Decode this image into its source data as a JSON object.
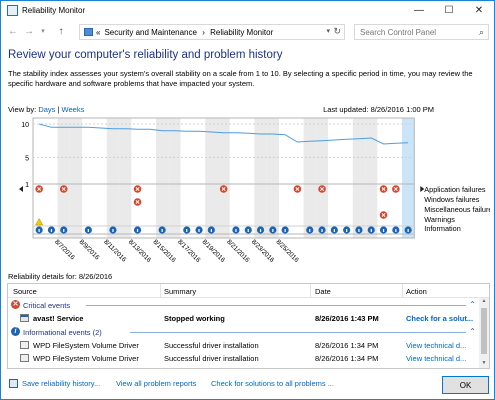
{
  "window": {
    "title": "Reliability Monitor",
    "buttons": {
      "minimize": "—",
      "maximize": "☐",
      "close": "✕"
    }
  },
  "address": {
    "back": "←",
    "forward": "→",
    "up": "↑",
    "chevron": "«",
    "crumb1": "Security and Maintenance",
    "sep": "›",
    "crumb2": "Reliability Monitor",
    "dropdown": "▾",
    "refresh": "↻",
    "search_placeholder": "Search Control Panel",
    "search_icon": "⌕"
  },
  "page": {
    "title": "Review your computer's reliability and problem history",
    "description": "The stability index assesses your system's overall stability on a scale from 1 to 10. By selecting a specific period in time, you may review the specific hardware and software problems that have impacted your system.",
    "view_by_label": "View by:",
    "view_days": "Days",
    "view_sep": "|",
    "view_weeks": "Weeks",
    "last_updated": "Last updated: 8/26/2016 1:00 PM"
  },
  "chart_data": {
    "type": "line",
    "y_ticks": [
      "10",
      "5",
      "1"
    ],
    "ylim": [
      1,
      10
    ],
    "dates": [
      "8/7/2016",
      "8/9/2016",
      "8/11/2016",
      "8/13/2016",
      "8/15/2016",
      "8/17/2016",
      "8/19/2016",
      "8/21/2016",
      "8/23/2016",
      "8/25/2016"
    ],
    "stability_index": [
      10,
      9.5,
      9.5,
      9.5,
      9.5,
      9.4,
      9.3,
      9.3,
      9.2,
      9.2,
      9.0,
      9.0,
      8.9,
      8.9,
      8.8,
      8.7,
      8.7,
      8.6,
      8.5,
      8.5,
      8.4,
      7.3,
      7.4,
      7.5,
      7.6,
      7.7,
      7.8,
      7.9,
      7.0,
      7.1,
      7.2
    ],
    "categories": [
      "Application failures",
      "Windows failures",
      "Miscellaneous failures",
      "Warnings",
      "Information"
    ],
    "application_failures": [
      1,
      0,
      1,
      0,
      0,
      0,
      0,
      0,
      1,
      0,
      0,
      0,
      0,
      0,
      0,
      1,
      0,
      0,
      0,
      0,
      0,
      1,
      0,
      1,
      0,
      0,
      0,
      0,
      1,
      1,
      0
    ],
    "windows_failures": [
      0,
      0,
      0,
      0,
      0,
      0,
      0,
      0,
      1,
      0,
      0,
      0,
      0,
      0,
      0,
      0,
      0,
      0,
      0,
      0,
      0,
      0,
      0,
      0,
      0,
      0,
      0,
      0,
      0,
      0,
      0
    ],
    "misc_failures": [
      0,
      0,
      0,
      0,
      0,
      0,
      0,
      0,
      0,
      0,
      0,
      0,
      0,
      0,
      0,
      0,
      0,
      0,
      0,
      0,
      0,
      0,
      0,
      0,
      0,
      0,
      0,
      0,
      1,
      0,
      0
    ],
    "warnings": [
      1,
      0,
      0,
      0,
      0,
      0,
      0,
      0,
      0,
      0,
      0,
      0,
      0,
      0,
      0,
      0,
      0,
      0,
      0,
      0,
      0,
      0,
      0,
      0,
      0,
      0,
      0,
      0,
      0,
      0,
      0
    ],
    "information": [
      1,
      1,
      1,
      0,
      1,
      0,
      1,
      0,
      1,
      0,
      1,
      0,
      1,
      1,
      1,
      0,
      1,
      1,
      1,
      1,
      1,
      0,
      1,
      1,
      1,
      1,
      1,
      1,
      1,
      1,
      1
    ],
    "selected_day": 30
  },
  "details": {
    "title": "Reliability details for: 8/26/2016",
    "columns": [
      "Source",
      "Summary",
      "Date",
      "Action"
    ],
    "critical_label": "Critical events",
    "info_label": "Informational events (2)",
    "critical_rows": [
      {
        "source": "avast! Service",
        "summary": "Stopped working",
        "date": "8/26/2016 1:43 PM",
        "action": "Check for a solut..."
      }
    ],
    "info_rows": [
      {
        "source": "WPD FileSystem Volume Driver",
        "summary": "Successful driver installation",
        "date": "8/26/2016 1:34 PM",
        "action": "View technical d..."
      },
      {
        "source": "WPD FileSystem Volume Driver",
        "summary": "Successful driver installation",
        "date": "8/26/2016 1:34 PM",
        "action": "View technical d..."
      }
    ]
  },
  "footer": {
    "save": "Save reliability history...",
    "all_reports": "View all problem reports",
    "check_solutions": "Check for solutions to all problems ...",
    "ok": "OK"
  },
  "colors": {
    "accent": "#0066cc",
    "title": "#1e3287",
    "error": "#d9452c",
    "info": "#1e64b4",
    "warning": "#f2c811",
    "selected": "#cce4f7"
  }
}
